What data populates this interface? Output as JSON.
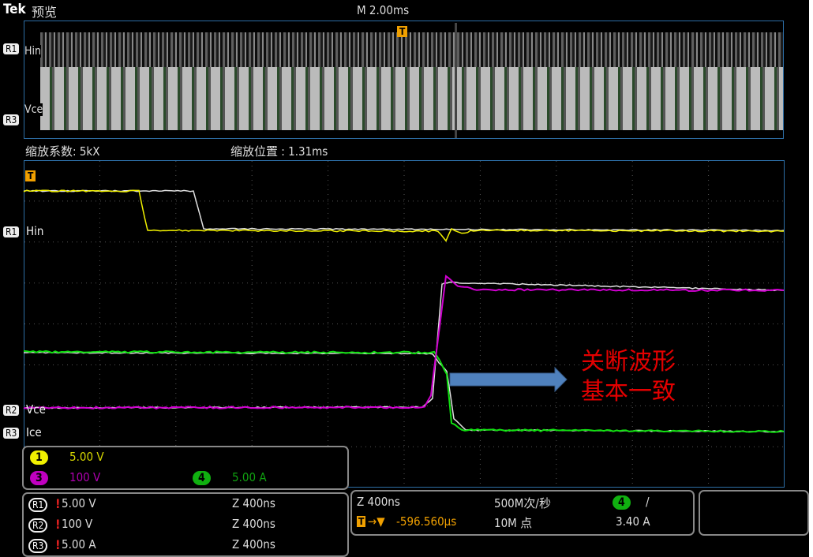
{
  "header": {
    "brand": "Tek",
    "mode": "预览",
    "timebase": "M 2.00ms"
  },
  "zoom_info": {
    "factor": "缩放系数: 5kX",
    "position": "缩放位置 : 1.31ms"
  },
  "channels": {
    "r1_label": "Hin",
    "r3_label": "Vce",
    "r1_marker": "R1",
    "r2_marker": "R2",
    "r3_marker": "R3",
    "trigger_marker": "T",
    "zoom_r1": "Hin",
    "zoom_r2": "Vce",
    "zoom_r3": "Ice"
  },
  "colors": {
    "ch1": "#f0f000",
    "ch3": "#d000d0",
    "ch4": "#10c010",
    "ref": "#e0e0e0",
    "annotation": "#e30000",
    "arrow": "#4f81bd"
  },
  "annotation": {
    "line1": "关断波形",
    "line2": "基本一致"
  },
  "scale_box": {
    "ch1_num": "1",
    "ch1_scale": "5.00 V",
    "ch3_num": "3",
    "ch3_scale": "100 V",
    "ch4_num": "4",
    "ch4_scale": "5.00 A"
  },
  "ref_box": [
    {
      "ref": "R1",
      "scale": "5.00 V",
      "zoom": "Z 400ns"
    },
    {
      "ref": "R2",
      "scale": "100 V",
      "zoom": "Z 400ns"
    },
    {
      "ref": "R3",
      "scale": "5.00 A",
      "zoom": "Z 400ns"
    }
  ],
  "acq_box": {
    "zoom": "Z 400ns",
    "trigger_pos": "-596.560µs",
    "sample_rate": "500M次/秒",
    "record": "10M 点",
    "trig_ch": "4",
    "trig_slope": "/",
    "trig_level": "3.40 A"
  }
}
